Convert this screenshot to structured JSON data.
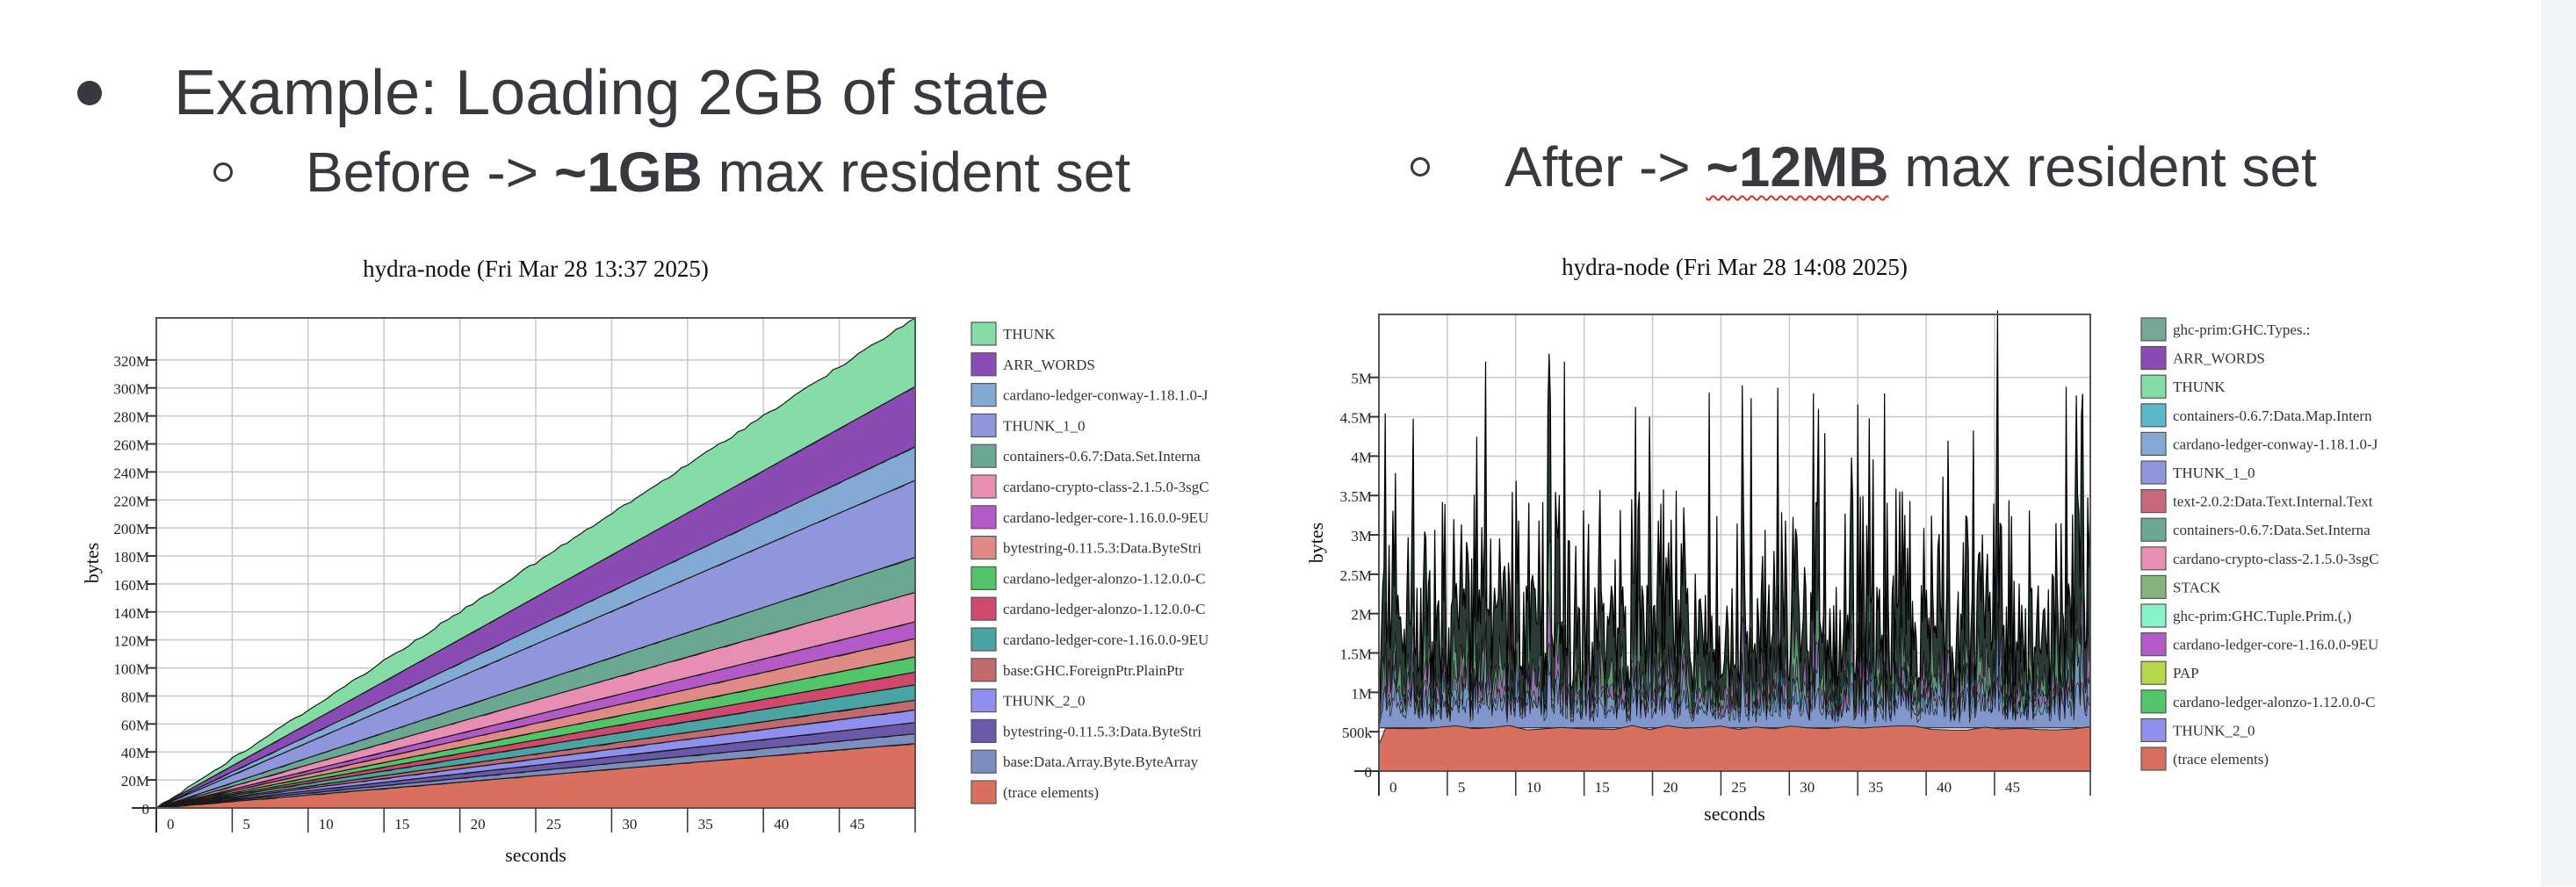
{
  "slide": {
    "heading": "Example: Loading 2GB of state",
    "before_prefix": "Before -> ",
    "before_bold": "~1GB",
    "before_suffix": " max resident set",
    "after_prefix": "After -> ",
    "after_bold": "~12MB",
    "after_suffix": " max resident set"
  },
  "chart_data": [
    {
      "type": "area",
      "stacked": true,
      "title": "hydra-node (Fri Mar 28 13:37 2025)",
      "xlabel": "seconds",
      "ylabel": "bytes",
      "xlim": [
        0,
        50
      ],
      "ylim": [
        0,
        350
      ],
      "unit": "M",
      "x_ticks": [
        0,
        5,
        10,
        15,
        20,
        25,
        30,
        35,
        40,
        45
      ],
      "y_ticks": [
        0,
        20,
        40,
        60,
        80,
        100,
        120,
        140,
        160,
        180,
        200,
        220,
        240,
        260,
        280,
        300,
        320
      ],
      "y_tick_labels": [
        "0",
        "20M",
        "40M",
        "60M",
        "80M",
        "100M",
        "120M",
        "140M",
        "160M",
        "180M",
        "200M",
        "220M",
        "240M",
        "260M",
        "280M",
        "300M",
        "320M"
      ],
      "grid": true,
      "legend_position": "right",
      "x": [
        0,
        50
      ],
      "series": [
        {
          "name": "(trace elements)",
          "color": "#d9705f",
          "values": [
            0,
            46
          ]
        },
        {
          "name": "base:Data.Array.Byte.ByteArray",
          "color": "#7b8fbf",
          "values": [
            0,
            7
          ]
        },
        {
          "name": "bytestring-0.11.5.3:Data.ByteStri",
          "color": "#6b58a8",
          "values": [
            0,
            8
          ]
        },
        {
          "name": "THUNK_2_0",
          "color": "#8f8ff0",
          "values": [
            0,
            9
          ]
        },
        {
          "name": "base:GHC.ForeignPtr.PlainPtr",
          "color": "#c06a6e",
          "values": [
            0,
            7
          ]
        },
        {
          "name": "cardano-ledger-core-1.16.0.0-9EU",
          "color": "#4aa4a4",
          "values": [
            0,
            11
          ]
        },
        {
          "name": "cardano-ledger-alonzo-1.12.0.0-C",
          "color": "#d0486c",
          "values": [
            0,
            9
          ]
        },
        {
          "name": "cardano-ledger-alonzo-1.12.0.0-C",
          "color": "#52c46a",
          "values": [
            0,
            11
          ]
        },
        {
          "name": "bytestring-0.11.5.3:Data.ByteStri",
          "color": "#e08a86",
          "values": [
            0,
            13
          ]
        },
        {
          "name": "cardano-ledger-core-1.16.0.0-9EU",
          "color": "#b45ac8",
          "values": [
            0,
            12
          ]
        },
        {
          "name": "cardano-crypto-class-2.1.5.0-3sgC",
          "color": "#e88eb2",
          "values": [
            0,
            21
          ]
        },
        {
          "name": "containers-0.6.7:Data.Set.Interna",
          "color": "#6aa894",
          "values": [
            0,
            25
          ]
        },
        {
          "name": "THUNK_1_0",
          "color": "#8f96dc",
          "values": [
            0,
            55
          ]
        },
        {
          "name": "cardano-ledger-conway-1.18.1.0-J",
          "color": "#82aad4",
          "values": [
            0,
            24
          ]
        },
        {
          "name": "ARR_WORDS",
          "color": "#8a4cb4",
          "values": [
            0,
            43
          ]
        },
        {
          "name": "THUNK",
          "color": "#86dca6",
          "values": [
            0,
            49
          ]
        }
      ],
      "legend_order": [
        "THUNK",
        "ARR_WORDS",
        "cardano-ledger-conway-1.18.1.0-J",
        "THUNK_1_0",
        "containers-0.6.7:Data.Set.Interna",
        "cardano-crypto-class-2.1.5.0-3sgC",
        "cardano-ledger-core-1.16.0.0-9EU",
        "bytestring-0.11.5.3:Data.ByteStri",
        "cardano-ledger-alonzo-1.12.0.0-C",
        "cardano-ledger-alonzo-1.12.0.0-C",
        "cardano-ledger-core-1.16.0.0-9EU",
        "base:GHC.ForeignPtr.PlainPtr",
        "THUNK_2_0",
        "bytestring-0.11.5.3:Data.ByteStri",
        "base:Data.Array.Byte.ByteArray",
        "(trace elements)"
      ],
      "legend_colors": [
        "#86dca6",
        "#8a4cb4",
        "#82aad4",
        "#8f96dc",
        "#6aa894",
        "#e88eb2",
        "#b45ac8",
        "#e08a86",
        "#52c46a",
        "#d0486c",
        "#4aa4a4",
        "#c06a6e",
        "#8f8ff0",
        "#6b58a8",
        "#7b8fbf",
        "#d9705f"
      ]
    },
    {
      "type": "area",
      "stacked": true,
      "title": "hydra-node (Fri Mar 28 14:08 2025)",
      "xlabel": "seconds",
      "ylabel": "bytes",
      "xlim": [
        0,
        52
      ],
      "ylim": [
        0,
        5.8
      ],
      "unit": "M",
      "x_ticks": [
        0,
        5,
        10,
        15,
        20,
        25,
        30,
        35,
        40,
        45
      ],
      "y_ticks": [
        0,
        0.5,
        1,
        1.5,
        2,
        2.5,
        3,
        3.5,
        4,
        4.5,
        5
      ],
      "y_tick_labels": [
        "0",
        "500k",
        "1M",
        "1.5M",
        "2M",
        "2.5M",
        "3M",
        "3.5M",
        "4M",
        "4.5M",
        "5M"
      ],
      "grid": true,
      "legend_position": "right",
      "baseline_trace_elements": 0.55,
      "typical_peak_range": [
        1.8,
        3.6
      ],
      "max_peak": 5.85,
      "legend_order": [
        "ghc-prim:GHC.Types.:",
        "ARR_WORDS",
        "THUNK",
        "containers-0.6.7:Data.Map.Intern",
        "cardano-ledger-conway-1.18.1.0-J",
        "THUNK_1_0",
        "text-2.0.2:Data.Text.Internal.Text",
        "containers-0.6.7:Data.Set.Interna",
        "cardano-crypto-class-2.1.5.0-3sgC",
        "STACK",
        "ghc-prim:GHC.Tuple.Prim.(,)",
        "cardano-ledger-core-1.16.0.0-9EU",
        "PAP",
        "cardano-ledger-alonzo-1.12.0.0-C",
        "THUNK_2_0",
        "(trace elements)"
      ],
      "legend_colors": [
        "#74a894",
        "#8a4cb4",
        "#86dca6",
        "#5ab8c8",
        "#82aad4",
        "#8f96dc",
        "#c86878",
        "#6aa894",
        "#e88eb2",
        "#86b47c",
        "#86f4c6",
        "#b45ac8",
        "#b4d84a",
        "#52c46a",
        "#8f8ff0",
        "#d9705f"
      ]
    }
  ]
}
